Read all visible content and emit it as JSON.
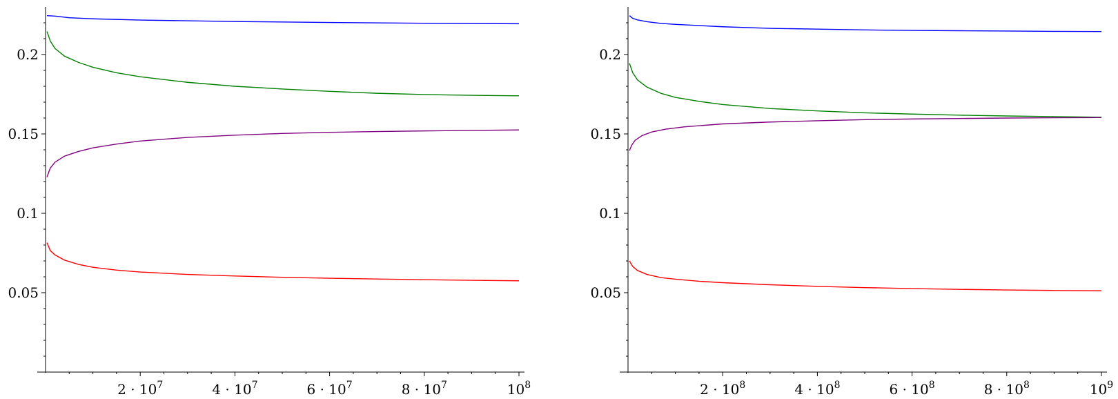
{
  "chart_data": [
    {
      "type": "line",
      "title": "",
      "xlabel": "",
      "ylabel": "",
      "xlim": [
        0,
        100000000
      ],
      "ylim": [
        0,
        0.23
      ],
      "grid": false,
      "x_ticks": [
        {
          "value": 20000000,
          "mantissa": "2",
          "exp": "7"
        },
        {
          "value": 40000000,
          "mantissa": "4",
          "exp": "7"
        },
        {
          "value": 60000000,
          "mantissa": "6",
          "exp": "7"
        },
        {
          "value": 80000000,
          "mantissa": "8",
          "exp": "7"
        },
        {
          "value": 100000000,
          "mantissa": "",
          "exp": "8"
        }
      ],
      "y_ticks": [
        {
          "value": 0.05,
          "label": "0.05"
        },
        {
          "value": 0.1,
          "label": "0.1"
        },
        {
          "value": 0.15,
          "label": "0.15"
        },
        {
          "value": 0.2,
          "label": "0.2"
        }
      ],
      "series": [
        {
          "color": "#0000ff",
          "points": [
            [
              300000,
              0.2245
            ],
            [
              2000000,
              0.2242
            ],
            [
              5000000,
              0.2232
            ],
            [
              10000000,
              0.2225
            ],
            [
              20000000,
              0.2217
            ],
            [
              40000000,
              0.2208
            ],
            [
              60000000,
              0.2202
            ],
            [
              80000000,
              0.2197
            ],
            [
              100000000,
              0.2194
            ]
          ]
        },
        {
          "color": "#008000",
          "points": [
            [
              300000,
              0.2145
            ],
            [
              1000000,
              0.2085
            ],
            [
              2000000,
              0.2038
            ],
            [
              4000000,
              0.199
            ],
            [
              7000000,
              0.195
            ],
            [
              10000000,
              0.192
            ],
            [
              15000000,
              0.1885
            ],
            [
              20000000,
              0.186
            ],
            [
              30000000,
              0.1825
            ],
            [
              40000000,
              0.18
            ],
            [
              50000000,
              0.1783
            ],
            [
              60000000,
              0.1768
            ],
            [
              70000000,
              0.1756
            ],
            [
              80000000,
              0.1748
            ],
            [
              90000000,
              0.1743
            ],
            [
              100000000,
              0.174
            ]
          ]
        },
        {
          "color": "#800080",
          "points": [
            [
              300000,
              0.1228
            ],
            [
              1000000,
              0.1285
            ],
            [
              2000000,
              0.1322
            ],
            [
              4000000,
              0.136
            ],
            [
              7000000,
              0.139
            ],
            [
              10000000,
              0.1412
            ],
            [
              15000000,
              0.1436
            ],
            [
              20000000,
              0.1455
            ],
            [
              30000000,
              0.1478
            ],
            [
              40000000,
              0.1492
            ],
            [
              50000000,
              0.1503
            ],
            [
              60000000,
              0.151
            ],
            [
              70000000,
              0.1515
            ],
            [
              80000000,
              0.1519
            ],
            [
              90000000,
              0.1522
            ],
            [
              100000000,
              0.1525
            ]
          ]
        },
        {
          "color": "#ff0000",
          "points": [
            [
              300000,
              0.0815
            ],
            [
              1000000,
              0.0765
            ],
            [
              2000000,
              0.0738
            ],
            [
              4000000,
              0.0705
            ],
            [
              7000000,
              0.0678
            ],
            [
              10000000,
              0.066
            ],
            [
              15000000,
              0.0642
            ],
            [
              20000000,
              0.063
            ],
            [
              30000000,
              0.0615
            ],
            [
              40000000,
              0.0605
            ],
            [
              50000000,
              0.0597
            ],
            [
              60000000,
              0.0591
            ],
            [
              70000000,
              0.0586
            ],
            [
              80000000,
              0.0582
            ],
            [
              90000000,
              0.0578
            ],
            [
              100000000,
              0.0575
            ]
          ]
        }
      ]
    },
    {
      "type": "line",
      "title": "",
      "xlabel": "",
      "ylabel": "",
      "xlim": [
        0,
        1000000000
      ],
      "ylim": [
        0,
        0.23
      ],
      "grid": false,
      "x_ticks": [
        {
          "value": 200000000,
          "mantissa": "2",
          "exp": "8"
        },
        {
          "value": 400000000,
          "mantissa": "4",
          "exp": "8"
        },
        {
          "value": 600000000,
          "mantissa": "6",
          "exp": "8"
        },
        {
          "value": 800000000,
          "mantissa": "8",
          "exp": "8"
        },
        {
          "value": 1000000000,
          "mantissa": "",
          "exp": "9"
        }
      ],
      "y_ticks": [
        {
          "value": 0.05,
          "label": "0.05"
        },
        {
          "value": 0.1,
          "label": "0.1"
        },
        {
          "value": 0.15,
          "label": "0.15"
        },
        {
          "value": 0.2,
          "label": "0.2"
        }
      ],
      "series": [
        {
          "color": "#0000ff",
          "points": [
            [
              3000000,
              0.2245
            ],
            [
              10000000,
              0.2228
            ],
            [
              20000000,
              0.2218
            ],
            [
              40000000,
              0.2207
            ],
            [
              70000000,
              0.2196
            ],
            [
              100000000,
              0.219
            ],
            [
              200000000,
              0.2175
            ],
            [
              300000000,
              0.2165
            ],
            [
              400000000,
              0.216
            ],
            [
              500000000,
              0.2155
            ],
            [
              600000000,
              0.2152
            ],
            [
              700000000,
              0.215
            ],
            [
              800000000,
              0.2148
            ],
            [
              900000000,
              0.2146
            ],
            [
              1000000000,
              0.2145
            ]
          ]
        },
        {
          "color": "#008000",
          "points": [
            [
              3000000,
              0.1945
            ],
            [
              10000000,
              0.1885
            ],
            [
              20000000,
              0.184
            ],
            [
              40000000,
              0.1795
            ],
            [
              70000000,
              0.1755
            ],
            [
              100000000,
              0.173
            ],
            [
              150000000,
              0.1705
            ],
            [
              200000000,
              0.1685
            ],
            [
              300000000,
              0.166
            ],
            [
              400000000,
              0.1645
            ],
            [
              500000000,
              0.1633
            ],
            [
              600000000,
              0.1625
            ],
            [
              700000000,
              0.1618
            ],
            [
              800000000,
              0.1613
            ],
            [
              900000000,
              0.1609
            ],
            [
              1000000000,
              0.1605
            ]
          ]
        },
        {
          "color": "#800080",
          "points": [
            [
              3000000,
              0.1395
            ],
            [
              8000000,
              0.143
            ],
            [
              15000000,
              0.146
            ],
            [
              30000000,
              0.149
            ],
            [
              50000000,
              0.1512
            ],
            [
              80000000,
              0.153
            ],
            [
              120000000,
              0.1545
            ],
            [
              200000000,
              0.1563
            ],
            [
              300000000,
              0.1575
            ],
            [
              400000000,
              0.1583
            ],
            [
              500000000,
              0.159
            ],
            [
              600000000,
              0.1594
            ],
            [
              700000000,
              0.1597
            ],
            [
              800000000,
              0.16
            ],
            [
              900000000,
              0.1602
            ],
            [
              1000000000,
              0.1603
            ]
          ]
        },
        {
          "color": "#ff0000",
          "points": [
            [
              3000000,
              0.07
            ],
            [
              10000000,
              0.0665
            ],
            [
              20000000,
              0.064
            ],
            [
              40000000,
              0.0615
            ],
            [
              70000000,
              0.0595
            ],
            [
              100000000,
              0.0585
            ],
            [
              150000000,
              0.0572
            ],
            [
              200000000,
              0.0563
            ],
            [
              300000000,
              0.055
            ],
            [
              400000000,
              0.054
            ],
            [
              500000000,
              0.0532
            ],
            [
              600000000,
              0.0526
            ],
            [
              700000000,
              0.0521
            ],
            [
              800000000,
              0.0517
            ],
            [
              900000000,
              0.0514
            ],
            [
              1000000000,
              0.0512
            ]
          ]
        }
      ]
    }
  ]
}
